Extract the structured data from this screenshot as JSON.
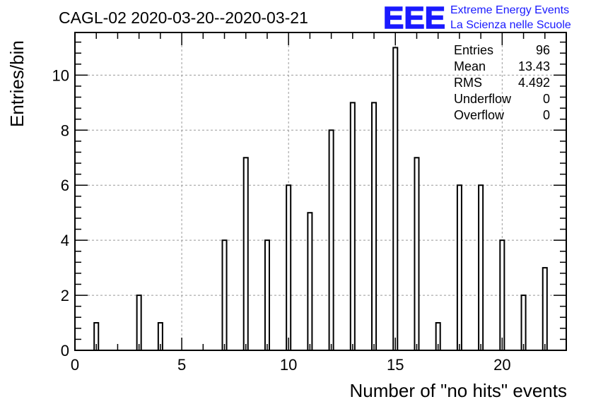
{
  "logo": {
    "mark": "EEE",
    "line1": "Extreme Energy Events",
    "line2": "La Scienza nelle Scuole",
    "color": "#1a1aff"
  },
  "chart_data": {
    "type": "bar",
    "title": "CAGL-02 2020-03-20--2020-03-21",
    "xlabel": "Number of \"no hits\" events",
    "ylabel": "Entries/bin",
    "xlim": [
      0,
      23
    ],
    "ylim": [
      0,
      11.55
    ],
    "x_ticks": [
      0,
      5,
      10,
      15,
      20
    ],
    "y_ticks": [
      0,
      2,
      4,
      6,
      8,
      10
    ],
    "grid": true,
    "x": [
      1,
      3,
      4,
      7,
      8,
      9,
      10,
      11,
      12,
      13,
      14,
      15,
      16,
      17,
      18,
      19,
      20,
      21,
      22
    ],
    "values": [
      1,
      2,
      1,
      4,
      7,
      4,
      6,
      5,
      8,
      9,
      9,
      11,
      7,
      1,
      6,
      6,
      4,
      2,
      3
    ],
    "stats": [
      {
        "label": "Entries",
        "value": "96"
      },
      {
        "label": "Mean",
        "value": "13.43"
      },
      {
        "label": "RMS",
        "value": "4.492"
      },
      {
        "label": "Underflow",
        "value": "0"
      },
      {
        "label": "Overflow",
        "value": "0"
      }
    ]
  }
}
